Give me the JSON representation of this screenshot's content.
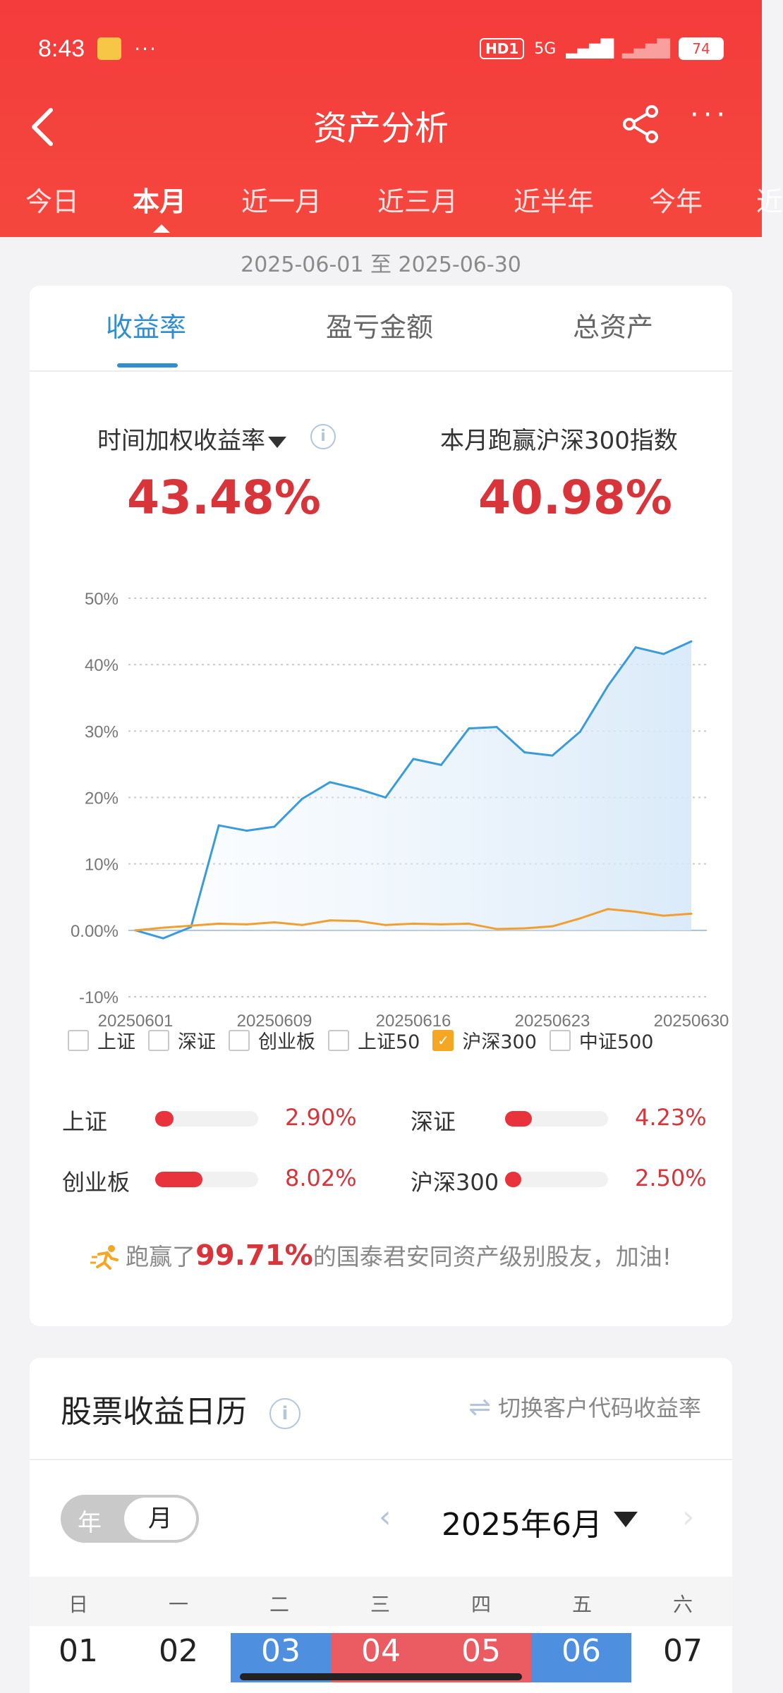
{
  "status": {
    "time": "8:43",
    "dots": "···",
    "hd": "HD1",
    "net": "5G",
    "battery": "74"
  },
  "nav": {
    "back": "‹",
    "title": "资产分析",
    "more": "···"
  },
  "periods": [
    "今日",
    "本月",
    "近一月",
    "近三月",
    "近半年",
    "今年",
    "近"
  ],
  "active_period": "本月",
  "date_range": "2025-06-01 至 2025-06-30",
  "subtabs": [
    "收益率",
    "盈亏金额",
    "总资产"
  ],
  "metrics": {
    "left_label": "时间加权收益率",
    "left_value": "43.48%",
    "right_label": "本月跑赢沪深300指数",
    "right_value": "40.98%"
  },
  "colors": {
    "primary": "#2f8ed0",
    "red": "#d9343a",
    "orange": "#f5a623",
    "header": "#f43c3c"
  },
  "chart_data": {
    "type": "line",
    "x": [
      "20250601",
      "20250603",
      "20250604",
      "20250605",
      "20250606",
      "20250609",
      "20250610",
      "20250611",
      "20250612",
      "20250613",
      "20250616",
      "20250617",
      "20250618",
      "20250619",
      "20250620",
      "20250623",
      "20250624",
      "20250625",
      "20250626",
      "20250627",
      "20250630"
    ],
    "xticks": [
      "20250601",
      "20250609",
      "20250616",
      "20250623",
      "20250630"
    ],
    "yticks": [
      "50%",
      "40%",
      "30%",
      "20%",
      "10%",
      "0.00%",
      "-10%"
    ],
    "ylim": [
      -10,
      50
    ],
    "series": [
      {
        "name": "收益率",
        "color": "#3a9bd9",
        "values": [
          0,
          -1.2,
          0.5,
          15.8,
          15.0,
          15.6,
          19.8,
          22.3,
          21.3,
          20.0,
          25.8,
          24.9,
          30.4,
          30.6,
          26.8,
          26.3,
          29.9,
          36.8,
          42.6,
          41.6,
          43.5
        ]
      },
      {
        "name": "沪深300",
        "color": "#f0a030",
        "values": [
          0,
          0.4,
          0.7,
          1.0,
          0.9,
          1.2,
          0.8,
          1.5,
          1.4,
          0.8,
          1.0,
          0.9,
          1.0,
          0.2,
          0.3,
          0.6,
          1.8,
          3.2,
          2.8,
          2.2,
          2.5
        ]
      }
    ]
  },
  "legend": [
    {
      "label": "上证",
      "checked": false
    },
    {
      "label": "深证",
      "checked": false
    },
    {
      "label": "创业板",
      "checked": false
    },
    {
      "label": "上证50",
      "checked": false
    },
    {
      "label": "沪深300",
      "checked": true
    },
    {
      "label": "中证500",
      "checked": false
    }
  ],
  "indices": [
    {
      "name": "上证",
      "value": "2.90%",
      "ratio": 0.18
    },
    {
      "name": "深证",
      "value": "4.23%",
      "ratio": 0.26
    },
    {
      "name": "创业板",
      "value": "8.02%",
      "ratio": 0.46
    },
    {
      "name": "沪深300",
      "value": "2.50%",
      "ratio": 0.16
    }
  ],
  "beat": {
    "prefix": "跑赢了",
    "pct": "99.71%",
    "suffix": "的国泰君安同资产级别股友，加油!"
  },
  "calendar": {
    "title": "股票收益日历",
    "switch_label": "切换客户代码收益率",
    "mode_year": "年",
    "mode_month": "月",
    "month": "2025年6月",
    "weekdays": [
      "日",
      "一",
      "二",
      "三",
      "四",
      "五",
      "六"
    ],
    "days": [
      "01",
      "02",
      "03",
      "04",
      "05",
      "06",
      "07"
    ]
  }
}
